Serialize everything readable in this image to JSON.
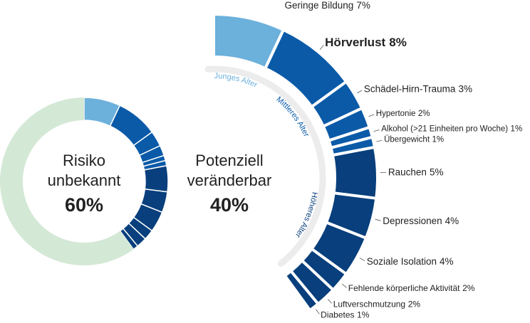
{
  "chart_data": [
    {
      "type": "donut",
      "categories": [
        "Risiko unbekannt",
        "Potenziell veränderbar"
      ],
      "values": [
        60,
        40
      ],
      "value_labels": [
        "60%",
        "40%"
      ],
      "color": "#d4e8d6"
    },
    {
      "type": "radial_bar",
      "categories": [
        "Geringe Bildung",
        "Hörverlust",
        "Schädel-Hirn-Trauma",
        "Hypertonie",
        "Alkohol (>21 Einheiten pro Woche)",
        "Übergewicht",
        "Rauchen",
        "Depressionen",
        "Soziale Isolation",
        "Fehlende körperliche Aktivität",
        "Luftverschmutzung",
        "Diabetes"
      ],
      "values": [
        7,
        8,
        3,
        2,
        1,
        1,
        5,
        4,
        4,
        2,
        2,
        1
      ],
      "value_labels": [
        "7%",
        "8%",
        "3%",
        "2%",
        "1%",
        "1%",
        "5%",
        "4%",
        "4%",
        "2%",
        "2%",
        "1%"
      ],
      "bold": [
        false,
        true,
        false,
        false,
        false,
        false,
        false,
        false,
        false,
        false,
        false,
        false
      ],
      "group_of": [
        0,
        1,
        1,
        1,
        1,
        1,
        2,
        2,
        2,
        2,
        2,
        2
      ],
      "groups": [
        {
          "name": "Junges Alter",
          "color": "#6cb0dc"
        },
        {
          "name": "Mittleres Alter",
          "color": "#0b5aa8"
        },
        {
          "name": "Höheres Alter",
          "color": "#083f7c"
        }
      ]
    }
  ]
}
